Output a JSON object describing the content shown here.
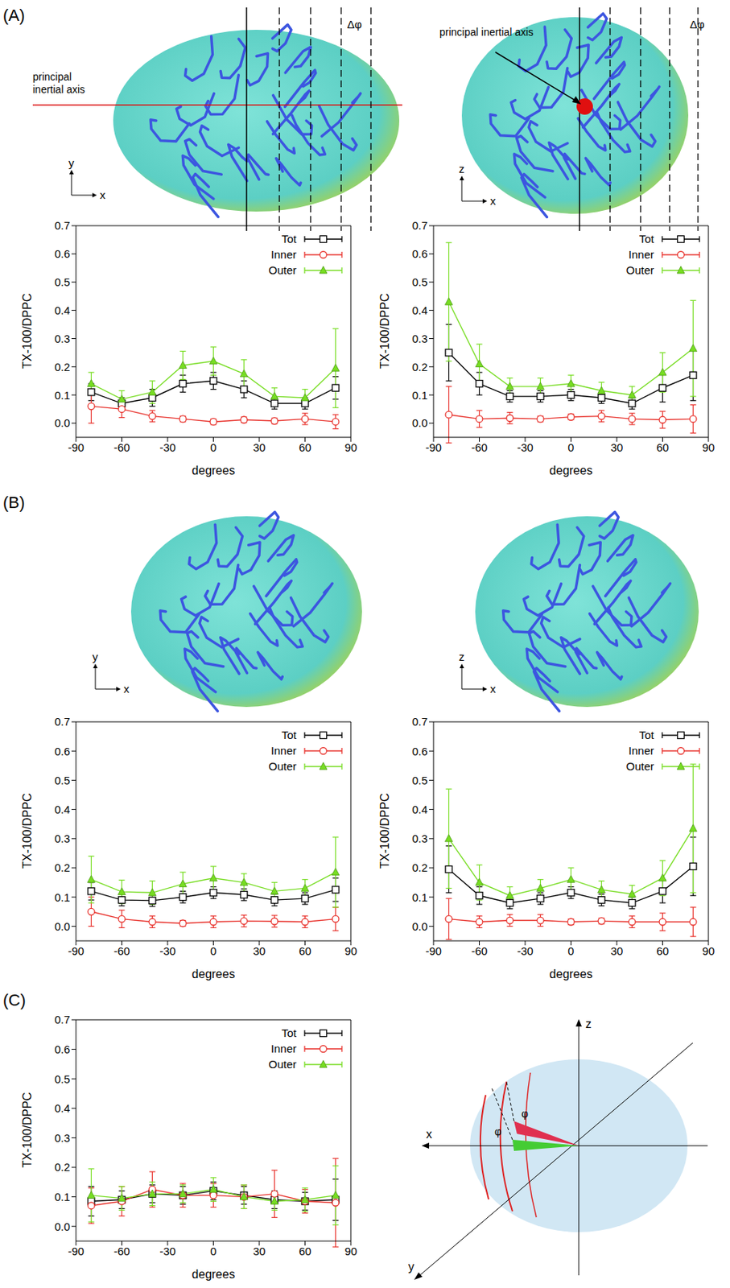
{
  "figure": {
    "panels": [
      {
        "label": "(A)",
        "views": [
          {
            "axes": [
              "x",
              "y"
            ],
            "annotations": [
              "principal inertial axis",
              "Δφ"
            ]
          },
          {
            "axes": [
              "x",
              "z"
            ],
            "annotations": [
              "principal inertial axis",
              "Δφ"
            ]
          }
        ]
      },
      {
        "label": "(B)",
        "views": [
          {
            "axes": [
              "x",
              "y"
            ]
          },
          {
            "axes": [
              "x",
              "z"
            ]
          }
        ]
      },
      {
        "label": "(C)",
        "diagram": {
          "axes": [
            "x",
            "y",
            "z"
          ],
          "angle_labels": [
            "φ",
            "φ"
          ]
        }
      }
    ]
  },
  "chart_data": [
    {
      "type": "line",
      "xlabel": "degrees",
      "ylabel": "TX-100/DPPC",
      "legend": "upper right",
      "x": [
        -80,
        -60,
        -40,
        -20,
        0,
        20,
        40,
        60,
        80
      ],
      "xlim": [
        -90,
        90
      ],
      "xticks": [
        -90,
        -60,
        -30,
        0,
        30,
        60,
        90
      ],
      "ylim": [
        -0.05,
        0.7
      ],
      "yticks": [
        {
          "value": 0,
          "label": "0.0"
        },
        {
          "value": 0.1,
          "label": "0.1"
        },
        {
          "value": 0.2,
          "label": "0.2"
        },
        {
          "value": 0.3,
          "label": "0.3"
        },
        {
          "value": 0.4,
          "label": "0.4"
        },
        {
          "value": 0.5,
          "label": "0.5"
        },
        {
          "value": 0.6,
          "label": "0.6"
        },
        {
          "value": 0.7,
          "label": "0.7"
        }
      ],
      "series": [
        {
          "name": "Tot",
          "color": "#000000",
          "marker": "square",
          "values": [
            0.11,
            0.07,
            0.09,
            0.14,
            0.15,
            0.12,
            0.07,
            0.07,
            0.125
          ],
          "errors": [
            0.03,
            0.02,
            0.03,
            0.03,
            0.03,
            0.03,
            0.02,
            0.02,
            0.04
          ]
        },
        {
          "name": "Inner",
          "color": "#e8312b",
          "marker": "circle",
          "values": [
            0.06,
            0.05,
            0.025,
            0.015,
            0.005,
            0.012,
            0.008,
            0.015,
            0.005
          ],
          "errors": [
            0.06,
            0.03,
            0.02,
            0.01,
            0.01,
            0.01,
            0.01,
            0.02,
            0.025
          ]
        },
        {
          "name": "Outer",
          "color": "#77dd22",
          "marker": "triangle",
          "values": [
            0.14,
            0.085,
            0.11,
            0.205,
            0.22,
            0.175,
            0.095,
            0.09,
            0.195
          ],
          "errors": [
            0.04,
            0.03,
            0.04,
            0.05,
            0.05,
            0.05,
            0.03,
            0.03,
            0.14
          ]
        }
      ]
    },
    {
      "type": "line",
      "xlabel": "degrees",
      "ylabel": "TX-100/DPPC",
      "legend": "upper right",
      "x": [
        -80,
        -60,
        -40,
        -20,
        0,
        20,
        40,
        60,
        80
      ],
      "xlim": [
        -90,
        90
      ],
      "xticks": [
        -90,
        -60,
        -30,
        0,
        30,
        60,
        90
      ],
      "ylim": [
        -0.05,
        0.7
      ],
      "yticks": [
        {
          "value": 0,
          "label": "0.0"
        },
        {
          "value": 0.1,
          "label": "0.1"
        },
        {
          "value": 0.2,
          "label": "0.2"
        },
        {
          "value": 0.3,
          "label": "0.3"
        },
        {
          "value": 0.4,
          "label": "0.4"
        },
        {
          "value": 0.5,
          "label": "0.5"
        },
        {
          "value": 0.6,
          "label": "0.6"
        },
        {
          "value": 0.7,
          "label": "0.7"
        }
      ],
      "series": [
        {
          "name": "Tot",
          "color": "#000000",
          "marker": "square",
          "values": [
            0.25,
            0.14,
            0.095,
            0.095,
            0.1,
            0.09,
            0.07,
            0.125,
            0.17
          ],
          "errors": [
            0.1,
            0.04,
            0.02,
            0.02,
            0.02,
            0.02,
            0.02,
            0.05,
            0.09
          ]
        },
        {
          "name": "Inner",
          "color": "#e8312b",
          "marker": "circle",
          "values": [
            0.03,
            0.015,
            0.018,
            0.015,
            0.022,
            0.025,
            0.015,
            0.012,
            0.015
          ],
          "errors": [
            0.1,
            0.03,
            0.02,
            0.01,
            0.01,
            0.02,
            0.02,
            0.03,
            0.05
          ]
        },
        {
          "name": "Outer",
          "color": "#77dd22",
          "marker": "triangle",
          "values": [
            0.43,
            0.21,
            0.13,
            0.13,
            0.14,
            0.115,
            0.1,
            0.18,
            0.265
          ],
          "errors": [
            0.21,
            0.07,
            0.03,
            0.03,
            0.03,
            0.03,
            0.03,
            0.07,
            0.17
          ]
        }
      ]
    },
    {
      "type": "line",
      "xlabel": "degrees",
      "ylabel": "TX-100/DPPC",
      "legend": "upper right",
      "x": [
        -80,
        -60,
        -40,
        -20,
        0,
        20,
        40,
        60,
        80
      ],
      "xlim": [
        -90,
        90
      ],
      "xticks": [
        -90,
        -60,
        -30,
        0,
        30,
        60,
        90
      ],
      "ylim": [
        -0.05,
        0.7
      ],
      "yticks": [
        {
          "value": 0,
          "label": "0.0"
        },
        {
          "value": 0.1,
          "label": "0.1"
        },
        {
          "value": 0.2,
          "label": "0.2"
        },
        {
          "value": 0.3,
          "label": "0.3"
        },
        {
          "value": 0.4,
          "label": "0.4"
        },
        {
          "value": 0.5,
          "label": "0.5"
        },
        {
          "value": 0.6,
          "label": "0.6"
        },
        {
          "value": 0.7,
          "label": "0.7"
        }
      ],
      "series": [
        {
          "name": "Tot",
          "color": "#000000",
          "marker": "square",
          "values": [
            0.12,
            0.09,
            0.088,
            0.1,
            0.115,
            0.108,
            0.09,
            0.095,
            0.125
          ],
          "errors": [
            0.03,
            0.02,
            0.02,
            0.02,
            0.02,
            0.02,
            0.02,
            0.02,
            0.04
          ]
        },
        {
          "name": "Inner",
          "color": "#e8312b",
          "marker": "circle",
          "values": [
            0.05,
            0.025,
            0.015,
            0.01,
            0.015,
            0.018,
            0.017,
            0.015,
            0.025
          ],
          "errors": [
            0.05,
            0.03,
            0.02,
            0.01,
            0.02,
            0.02,
            0.02,
            0.02,
            0.04
          ]
        },
        {
          "name": "Outer",
          "color": "#77dd22",
          "marker": "triangle",
          "values": [
            0.16,
            0.118,
            0.115,
            0.145,
            0.165,
            0.15,
            0.12,
            0.13,
            0.185
          ],
          "errors": [
            0.08,
            0.04,
            0.04,
            0.04,
            0.04,
            0.03,
            0.03,
            0.03,
            0.12
          ]
        }
      ]
    },
    {
      "type": "line",
      "xlabel": "degrees",
      "ylabel": "TX-100/DPPC",
      "legend": "upper right",
      "x": [
        -80,
        -60,
        -40,
        -20,
        0,
        20,
        40,
        60,
        80
      ],
      "xlim": [
        -90,
        90
      ],
      "xticks": [
        -90,
        -60,
        -30,
        0,
        30,
        60,
        90
      ],
      "ylim": [
        -0.05,
        0.7
      ],
      "yticks": [
        {
          "value": 0,
          "label": "0.0"
        },
        {
          "value": 0.1,
          "label": "0.1"
        },
        {
          "value": 0.2,
          "label": "0.2"
        },
        {
          "value": 0.3,
          "label": "0.3"
        },
        {
          "value": 0.4,
          "label": "0.4"
        },
        {
          "value": 0.5,
          "label": "0.5"
        },
        {
          "value": 0.6,
          "label": "0.6"
        },
        {
          "value": 0.7,
          "label": "0.7"
        }
      ],
      "series": [
        {
          "name": "Tot",
          "color": "#000000",
          "marker": "square",
          "values": [
            0.195,
            0.105,
            0.08,
            0.095,
            0.115,
            0.09,
            0.08,
            0.12,
            0.205
          ],
          "errors": [
            0.08,
            0.03,
            0.02,
            0.02,
            0.02,
            0.02,
            0.02,
            0.04,
            0.1
          ]
        },
        {
          "name": "Inner",
          "color": "#e8312b",
          "marker": "circle",
          "values": [
            0.025,
            0.015,
            0.02,
            0.02,
            0.015,
            0.018,
            0.015,
            0.015,
            0.015
          ],
          "errors": [
            0.07,
            0.02,
            0.02,
            0.02,
            0.01,
            0.01,
            0.02,
            0.03,
            0.05
          ]
        },
        {
          "name": "Outer",
          "color": "#77dd22",
          "marker": "triangle",
          "values": [
            0.3,
            0.15,
            0.105,
            0.13,
            0.16,
            0.125,
            0.11,
            0.165,
            0.335
          ],
          "errors": [
            0.17,
            0.06,
            0.03,
            0.03,
            0.04,
            0.03,
            0.03,
            0.06,
            0.22
          ]
        }
      ]
    },
    {
      "type": "line",
      "xlabel": "degrees",
      "ylabel": "TX-100/DPPC",
      "legend": "upper right",
      "x": [
        -80,
        -60,
        -40,
        -20,
        0,
        20,
        40,
        60,
        80
      ],
      "xlim": [
        -90,
        90
      ],
      "xticks": [
        -90,
        -60,
        -30,
        0,
        30,
        60,
        90
      ],
      "ylim": [
        -0.05,
        0.7
      ],
      "yticks": [
        {
          "value": 0,
          "label": "0.0"
        },
        {
          "value": 0.1,
          "label": "0.1"
        },
        {
          "value": 0.2,
          "label": "0.2"
        },
        {
          "value": 0.3,
          "label": "0.3"
        },
        {
          "value": 0.4,
          "label": "0.4"
        },
        {
          "value": 0.5,
          "label": "0.5"
        },
        {
          "value": 0.6,
          "label": "0.6"
        },
        {
          "value": 0.7,
          "label": "0.7"
        }
      ],
      "series": [
        {
          "name": "Tot",
          "color": "#000000",
          "marker": "square",
          "values": [
            0.085,
            0.09,
            0.11,
            0.105,
            0.12,
            0.105,
            0.09,
            0.085,
            0.09
          ],
          "errors": [
            0.05,
            0.03,
            0.03,
            0.03,
            0.03,
            0.03,
            0.03,
            0.03,
            0.07
          ]
        },
        {
          "name": "Inner",
          "color": "#e8312b",
          "marker": "circle",
          "values": [
            0.07,
            0.085,
            0.125,
            0.105,
            0.105,
            0.1,
            0.11,
            0.085,
            0.08
          ],
          "errors": [
            0.06,
            0.05,
            0.06,
            0.04,
            0.04,
            0.04,
            0.08,
            0.04,
            0.15
          ]
        },
        {
          "name": "Outer",
          "color": "#77dd22",
          "marker": "triangle",
          "values": [
            0.105,
            0.095,
            0.11,
            0.11,
            0.125,
            0.1,
            0.085,
            0.09,
            0.105
          ],
          "errors": [
            0.09,
            0.04,
            0.04,
            0.03,
            0.04,
            0.04,
            0.03,
            0.04,
            0.1
          ]
        }
      ]
    }
  ]
}
